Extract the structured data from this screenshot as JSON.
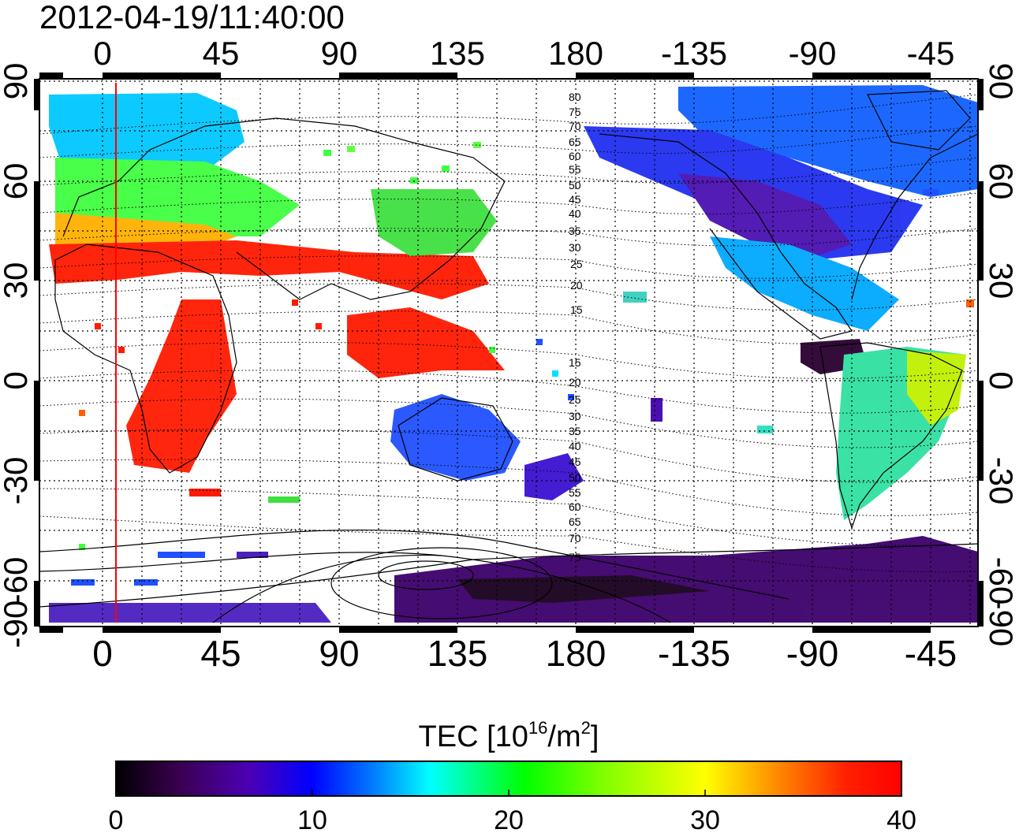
{
  "title": "2012-04-19/11:40:00",
  "axes": {
    "lon_labels": [
      "0",
      "45",
      "90",
      "135",
      "180",
      "-135",
      "-90",
      "-45"
    ],
    "lat_labels": [
      "90",
      "60",
      "30",
      "0",
      "-30",
      "-60",
      "-90"
    ]
  },
  "contour_labels": {
    "north": [
      "80",
      "75",
      "70",
      "65",
      "60",
      "55",
      "50",
      "45",
      "40",
      "35",
      "30",
      "25",
      "20",
      "15"
    ],
    "south": [
      "15",
      "20",
      "25",
      "30",
      "35",
      "40",
      "45",
      "50",
      "55",
      "60",
      "65",
      "70",
      "75"
    ]
  },
  "colorbar": {
    "title_prefix": "TEC  [10",
    "title_exp1": "16",
    "title_mid": "/m",
    "title_exp2": "2",
    "title_suffix": "]",
    "min": 0,
    "max": 40,
    "tick_labels": [
      "0",
      "10",
      "20",
      "30",
      "40"
    ],
    "colors": [
      "#000000",
      "#3a0050",
      "#4b00b4",
      "#0000ff",
      "#0080ff",
      "#00ffff",
      "#00ff80",
      "#00ff00",
      "#80ff00",
      "#ffff00",
      "#ff8000",
      "#ff2000",
      "#ff0000"
    ]
  },
  "marker": {
    "color": "#ff0000"
  }
}
